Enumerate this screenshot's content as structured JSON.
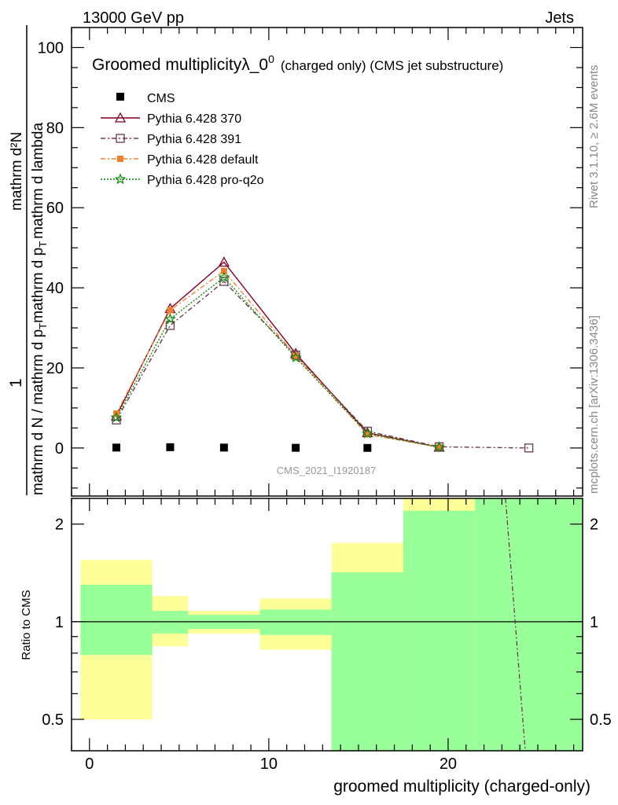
{
  "header": {
    "energy_label": "13000 GeV pp",
    "category_label": "Jets"
  },
  "side_labels": {
    "rivet": "Rivet 3.1.10, ≥ 2.6M events",
    "source": "mcplots.cern.ch [arXiv:1306.3436]"
  },
  "watermark": "CMS_2021_I1920187",
  "ratio_ylabel": "Ratio to CMS",
  "chart_data": {
    "type": "line",
    "title": "Groomed multiplicityλ_0",
    "title_sup": "0",
    "title_suffix": "(charged only) (CMS jet substructure)",
    "xlabel": "groomed multiplicity (charged-only)",
    "ylabel_numerator": "mathrm d²N",
    "ylabel_denominator": "mathrm d N / mathrm d p",
    "ylabel_lead": "1",
    "ylabel_second": "mathrm d p",
    "ylabel_second_tail": "mathrm d lambda",
    "ylabel_sub": "T",
    "xlim": [
      -1,
      27.5
    ],
    "ylim": [
      -12,
      105
    ],
    "xticks": [
      0,
      10,
      20
    ],
    "yticks": [
      0,
      20,
      40,
      60,
      80,
      100
    ],
    "ratio_ylim": [
      0.4,
      2.4
    ],
    "ratio_log": true,
    "ratio_yticks": [
      0.5,
      1,
      2
    ],
    "legend_position": "top-left",
    "bins": [
      [
        -0.5,
        3.5
      ],
      [
        3.5,
        5.5
      ],
      [
        5.5,
        9.5
      ],
      [
        9.5,
        13.5
      ],
      [
        13.5,
        17.5
      ],
      [
        17.5,
        21.5
      ],
      [
        21.5,
        27.5
      ]
    ],
    "x": [
      1.5,
      4.5,
      7.5,
      11.5,
      15.5,
      19.5,
      24.5
    ],
    "cms": {
      "name": "CMS",
      "x": [
        1.5,
        4.5,
        7.5,
        11.5,
        15.5
      ],
      "values": [
        0.1,
        0.2,
        0.1,
        0.05,
        0.02
      ]
    },
    "series": [
      {
        "name": "Pythia 6.428 370",
        "color": "#800020",
        "dash": "",
        "marker": "triangle",
        "x": [
          1.5,
          4.5,
          7.5,
          11.5,
          15.5,
          19.5
        ],
        "values": [
          8.0,
          34.8,
          46.4,
          23.6,
          3.8,
          0.2
        ]
      },
      {
        "name": "Pythia 6.428 391",
        "color": "#6b3a4a",
        "dash": "6,3,2,3",
        "marker": "square-open",
        "x": [
          1.5,
          4.5,
          7.5,
          11.5,
          15.5,
          19.5,
          24.5
        ],
        "values": [
          7.0,
          30.6,
          41.6,
          23.2,
          4.2,
          0.3,
          0.0
        ]
      },
      {
        "name": "Pythia 6.428 default",
        "color": "#f08030",
        "dash": "6,3,2,3",
        "marker": "square-filled",
        "x": [
          1.5,
          4.5,
          7.5,
          11.5,
          15.5,
          19.5
        ],
        "values": [
          8.6,
          34.4,
          44.2,
          23.0,
          3.4,
          0.2
        ]
      },
      {
        "name": "Pythia 6.428 pro-q2o",
        "color": "#0a8a0a",
        "dash": "2,2",
        "marker": "star",
        "x": [
          1.5,
          4.5,
          7.5,
          11.5,
          15.5,
          19.5
        ],
        "values": [
          7.6,
          32.2,
          42.6,
          22.6,
          3.6,
          0.2
        ]
      }
    ],
    "ratio_bands": {
      "inner_color": "#99ff99",
      "outer_color": "#ffff99",
      "inner": [
        [
          0.79,
          1.3
        ],
        [
          0.92,
          1.08
        ],
        [
          0.95,
          1.05
        ],
        [
          0.91,
          1.09
        ],
        [
          0.35,
          1.42
        ],
        [
          0.35,
          2.2
        ],
        [
          0.35,
          2.4
        ]
      ],
      "outer": [
        [
          0.5,
          1.55
        ],
        [
          0.84,
          1.2
        ],
        [
          0.92,
          1.08
        ],
        [
          0.82,
          1.18
        ],
        [
          0.35,
          1.75
        ],
        [
          0.35,
          2.4
        ],
        [
          0.35,
          2.4
        ]
      ]
    },
    "ratio_curve": {
      "color": "#6b3a4a",
      "x": [
        23.2,
        24.3
      ],
      "values": [
        2.4,
        0.4
      ]
    }
  }
}
